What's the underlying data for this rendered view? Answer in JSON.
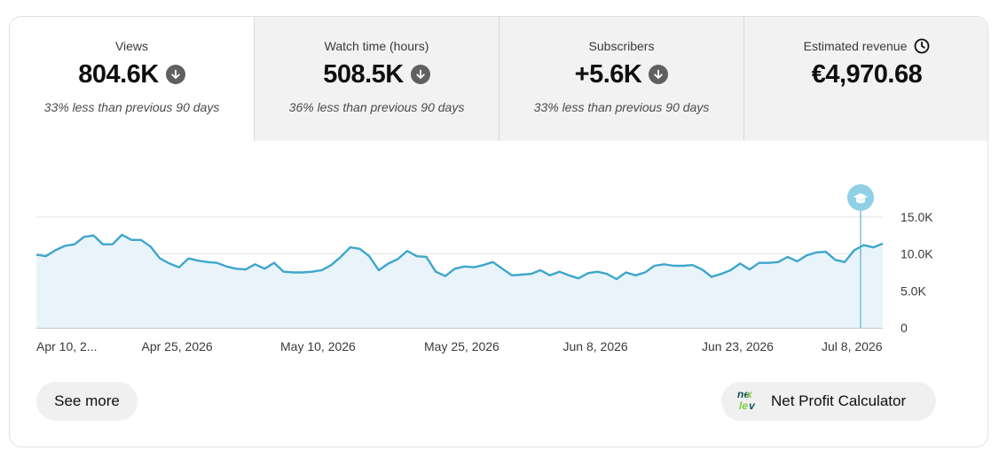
{
  "metrics": [
    {
      "label": "Views",
      "value": "804.6K",
      "trend_icon": "arrow-down-icon",
      "comparison": "33% less than previous 90 days",
      "active": true
    },
    {
      "label": "Watch time (hours)",
      "value": "508.5K",
      "trend_icon": "arrow-down-icon",
      "comparison": "36% less than previous 90 days",
      "active": false
    },
    {
      "label": "Subscribers",
      "value": "+5.6K",
      "trend_icon": "arrow-down-icon",
      "comparison": "33% less than previous 90 days",
      "active": false
    },
    {
      "label": "Estimated revenue",
      "value": "€4,970.68",
      "label_icon": "clock-icon",
      "active": false
    }
  ],
  "chart_data": {
    "type": "area",
    "series": [
      {
        "values": [
          9.9,
          9.7,
          10.5,
          11.1,
          11.3,
          12.3,
          12.5,
          11.3,
          11.3,
          12.6,
          11.9,
          11.9,
          11.0,
          9.4,
          8.7,
          8.2,
          9.4,
          9.1,
          8.9,
          8.8,
          8.3,
          8.0,
          7.9,
          8.6,
          8.0,
          8.8,
          7.6,
          7.5,
          7.5,
          7.6,
          7.8,
          8.5,
          9.6,
          10.9,
          10.7,
          9.7,
          7.8,
          8.7,
          9.3,
          10.4,
          9.7,
          9.6,
          7.6,
          7.0,
          8.0,
          8.3,
          8.2,
          8.5,
          8.9,
          8.0,
          7.1,
          7.2,
          7.3,
          7.8,
          7.1,
          7.6,
          7.1,
          6.7,
          7.4,
          7.6,
          7.3,
          6.6,
          7.5,
          7.1,
          7.5,
          8.4,
          8.6,
          8.4,
          8.4,
          8.5,
          7.9,
          6.9,
          7.3,
          7.8,
          8.7,
          7.9,
          8.8,
          8.8,
          8.9,
          9.6,
          9.0,
          9.8,
          10.2,
          10.3,
          9.2,
          8.9,
          10.5,
          11.2,
          10.9,
          11.4
        ]
      }
    ],
    "x_tick_labels": [
      "Apr 10, 2...",
      "Apr 25, 2026",
      "May 10, 2026",
      "May 25, 2026",
      "Jun 8, 2026",
      "Jun 23, 2026",
      "Jul 8, 2026"
    ],
    "y_tick_labels": [
      "15.0K",
      "10.0K",
      "5.0K",
      "0"
    ],
    "y_ticks": [
      15,
      10,
      5,
      0
    ],
    "ylim": [
      0,
      15
    ],
    "grid": true,
    "marker_label_icon": "graduation-cap-icon",
    "line_color": "#3ea6cc",
    "fill_color": "#e8f4fa"
  },
  "actions": {
    "see_more_label": "See more",
    "npc_label": "Net Profit Calculator",
    "npc_icon": "nexlev-logo-icon"
  }
}
